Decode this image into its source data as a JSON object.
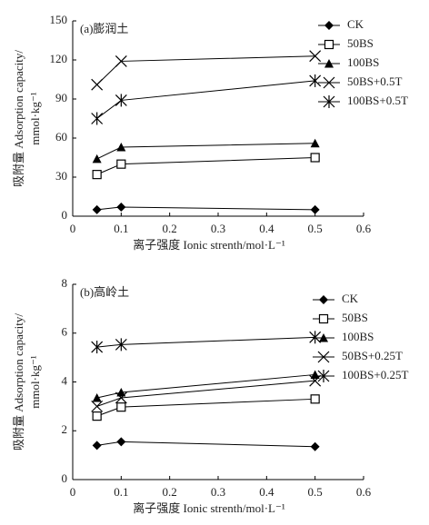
{
  "chart_data": [
    {
      "type": "line",
      "title": "(a)膨润土",
      "x_label": "离子强度 Ionic strenth/mol·L⁻¹",
      "y_label": [
        "吸附量 Adsorption capacity/",
        "mmol·kg⁻¹"
      ],
      "x": [
        0.05,
        0.1,
        0.5
      ],
      "xlim": [
        0,
        0.6
      ],
      "xticks": [
        0,
        0.1,
        0.2,
        0.3,
        0.4,
        0.5,
        0.6
      ],
      "ylim": [
        0,
        150
      ],
      "yticks": [
        0,
        30,
        60,
        90,
        120,
        150
      ],
      "legend": "upper right",
      "series": [
        {
          "name": "CK",
          "color": "#000000",
          "marker": "diamond",
          "values": [
            5,
            7,
            5
          ]
        },
        {
          "name": "50BS",
          "color": "#000000",
          "marker": "square",
          "values": [
            32,
            40,
            45
          ]
        },
        {
          "name": "100BS",
          "color": "#000000",
          "marker": "triangle",
          "values": [
            44,
            53,
            56
          ]
        },
        {
          "name": "50BS+0.5T",
          "color": "#000000",
          "marker": "x",
          "values": [
            101,
            119,
            123
          ]
        },
        {
          "name": "100BS+0.5T",
          "color": "#000000",
          "marker": "asterisk",
          "values": [
            75,
            89,
            104
          ]
        }
      ]
    },
    {
      "type": "line",
      "title": "(b)高岭土",
      "x_label": "离子强度 Ionic strenth/mol·L⁻¹",
      "y_label": [
        "吸附量 Adsorption capacity/",
        "mmol·kg⁻¹"
      ],
      "x": [
        0.05,
        0.1,
        0.5
      ],
      "xlim": [
        0,
        0.6
      ],
      "xticks": [
        0,
        0.1,
        0.2,
        0.3,
        0.4,
        0.5,
        0.6
      ],
      "ylim": [
        0,
        8
      ],
      "yticks": [
        0,
        2,
        4,
        6,
        8
      ],
      "legend": "upper right",
      "series": [
        {
          "name": "CK",
          "color": "#000000",
          "marker": "diamond",
          "values": [
            1.4,
            1.55,
            1.35
          ]
        },
        {
          "name": "50BS",
          "color": "#000000",
          "marker": "square",
          "values": [
            2.6,
            2.97,
            3.3
          ]
        },
        {
          "name": "100BS",
          "color": "#000000",
          "marker": "triangle",
          "values": [
            3.35,
            3.57,
            4.3
          ]
        },
        {
          "name": "50BS+0.25T",
          "color": "#000000",
          "marker": "x",
          "values": [
            3.0,
            3.35,
            4.05
          ]
        },
        {
          "name": "100BS+0.25T",
          "color": "#000000",
          "marker": "asterisk",
          "values": [
            5.43,
            5.53,
            5.83
          ]
        }
      ]
    }
  ]
}
